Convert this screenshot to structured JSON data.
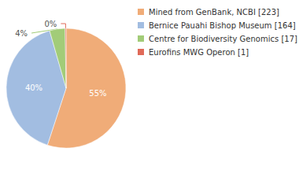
{
  "chart_data": {
    "type": "pie",
    "categories": [
      "Mined from GenBank, NCBI [223]",
      "Bernice Pauahi Bishop Museum [164]",
      "Centre for Biodiversity Genomics [17]",
      "Eurofins MWG Operon [1]"
    ],
    "values": [
      55.06,
      40.49,
      4.2,
      0.25
    ],
    "value_labels": [
      "55%",
      "40%",
      "4%",
      "0%"
    ],
    "colors": [
      "#f0ac78",
      "#a2bde1",
      "#a2cc78",
      "#e06a58"
    ],
    "legend": "right",
    "data_labels": true
  }
}
